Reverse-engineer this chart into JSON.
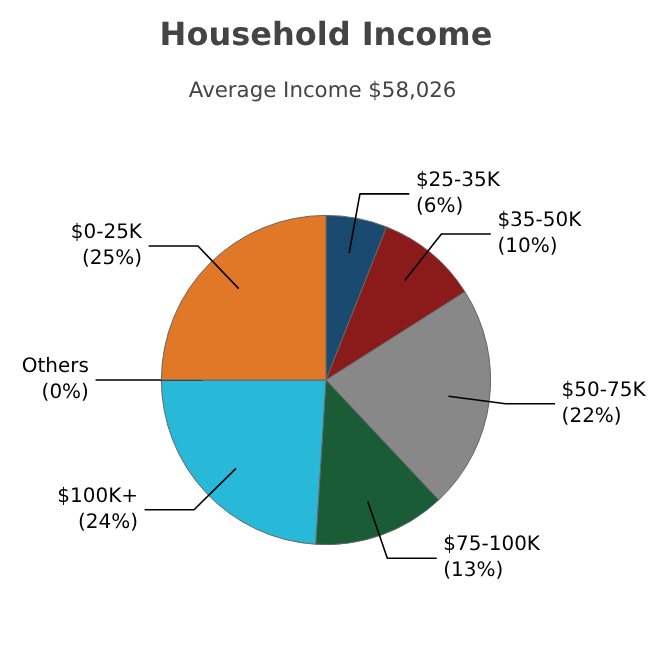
{
  "chart_data": {
    "type": "pie",
    "title": "Household Income",
    "subtitle": "Average Income  $58,026",
    "categories": [
      "$25-35K",
      "$35-50K",
      "$50-75K",
      "$75-100K",
      "$100K+",
      "Others",
      "$0-25K"
    ],
    "values": [
      6,
      10,
      22,
      13,
      24,
      0,
      25
    ],
    "colors": [
      "#1a4a70",
      "#8b1a1a",
      "#888888",
      "#1a5c36",
      "#28b8d8",
      "#c0c0c0",
      "#e07828"
    ],
    "value_labels": [
      "(6%)",
      "(10%)",
      "(22%)",
      "(13%)",
      "(24%)",
      "(0%)",
      "(25%)"
    ]
  }
}
